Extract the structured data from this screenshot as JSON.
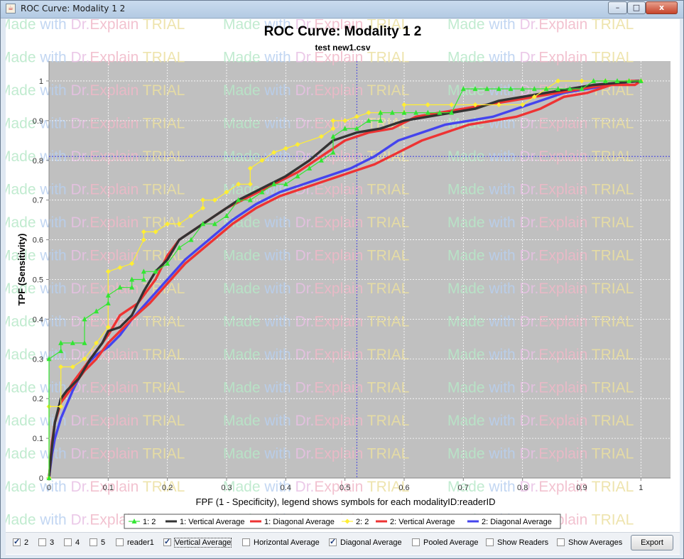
{
  "window": {
    "title": "ROC Curve: Modality 1 2",
    "app_icon": "java-coffee-icon",
    "minimize_glyph": "–",
    "maximize_glyph": "□",
    "close_glyph": "x"
  },
  "chart": {
    "title": "ROC Curve: Modality 1 2",
    "subtitle": "test new1.csv"
  },
  "chart_data": {
    "type": "line",
    "title": "ROC Curve: Modality 1 2",
    "subtitle": "test new1.csv",
    "xlabel": "FPF (1 - Specificity), legend shows symbols for each modalityID:readerID",
    "ylabel": "TPF (Sensitivity)",
    "xlim": [
      0,
      1.05
    ],
    "ylim": [
      0,
      1.05
    ],
    "x_ticks": [
      "0",
      "0.1",
      "0.2",
      "0.3",
      "0.4",
      "0.5",
      "0.6",
      "0.7",
      "0.8",
      "0.9",
      "1"
    ],
    "y_ticks": [
      "0",
      "0.1",
      "0.2",
      "0.3",
      "0.4",
      "0.5",
      "0.6",
      "0.7",
      "0.8",
      "0.9",
      "1"
    ],
    "grid": true,
    "background": "#c0c0c0",
    "crosshair": {
      "x": 0.52,
      "y": 0.81
    },
    "legend_position": "bottom",
    "series": [
      {
        "name": "1: 2",
        "color": "#33e633",
        "marker": "triangle",
        "x": [
          0,
          0,
          0.02,
          0.02,
          0.04,
          0.06,
          0.06,
          0.08,
          0.1,
          0.1,
          0.12,
          0.14,
          0.14,
          0.16,
          0.16,
          0.18,
          0.2,
          0.22,
          0.24,
          0.26,
          0.28,
          0.3,
          0.32,
          0.34,
          0.36,
          0.38,
          0.4,
          0.42,
          0.44,
          0.46,
          0.48,
          0.48,
          0.5,
          0.52,
          0.54,
          0.56,
          0.56,
          0.58,
          0.6,
          0.62,
          0.64,
          0.66,
          0.68,
          0.7,
          0.72,
          0.74,
          0.76,
          0.78,
          0.8,
          0.82,
          0.84,
          0.86,
          0.88,
          0.9,
          0.92,
          0.94,
          0.96,
          0.98,
          1
        ],
        "y": [
          0,
          0.3,
          0.32,
          0.34,
          0.34,
          0.34,
          0.4,
          0.42,
          0.44,
          0.46,
          0.48,
          0.48,
          0.5,
          0.5,
          0.52,
          0.52,
          0.54,
          0.58,
          0.6,
          0.64,
          0.64,
          0.66,
          0.7,
          0.7,
          0.72,
          0.74,
          0.74,
          0.76,
          0.78,
          0.8,
          0.82,
          0.86,
          0.88,
          0.88,
          0.9,
          0.9,
          0.92,
          0.92,
          0.92,
          0.92,
          0.92,
          0.92,
          0.92,
          0.98,
          0.98,
          0.98,
          0.98,
          0.98,
          0.98,
          0.98,
          0.98,
          0.98,
          0.98,
          0.98,
          1,
          1,
          1,
          1,
          1
        ]
      },
      {
        "name": "1: Vertical Average",
        "color": "#333333",
        "marker": "none",
        "x": [
          0,
          0.005,
          0.01,
          0.02,
          0.03,
          0.05,
          0.07,
          0.09,
          0.1,
          0.12,
          0.14,
          0.16,
          0.18,
          0.2,
          0.22,
          0.25,
          0.28,
          0.32,
          0.36,
          0.4,
          0.44,
          0.48,
          0.52,
          0.56,
          0.6,
          0.64,
          0.68,
          0.72,
          0.76,
          0.8,
          0.84,
          0.88,
          0.92,
          0.96,
          1
        ],
        "y": [
          0,
          0.08,
          0.14,
          0.2,
          0.22,
          0.25,
          0.3,
          0.34,
          0.37,
          0.38,
          0.41,
          0.47,
          0.52,
          0.55,
          0.6,
          0.63,
          0.66,
          0.7,
          0.73,
          0.76,
          0.8,
          0.85,
          0.87,
          0.88,
          0.9,
          0.91,
          0.92,
          0.93,
          0.95,
          0.96,
          0.97,
          0.98,
          0.99,
          0.995,
          1
        ]
      },
      {
        "name": "1: Diagonal Average",
        "color": "#ee3333",
        "marker": "none",
        "x": [
          0,
          0.005,
          0.01,
          0.02,
          0.04,
          0.06,
          0.08,
          0.1,
          0.12,
          0.15,
          0.18,
          0.2,
          0.22,
          0.26,
          0.3,
          0.34,
          0.38,
          0.42,
          0.46,
          0.5,
          0.54,
          0.58,
          0.62,
          0.66,
          0.7,
          0.74,
          0.78,
          0.82,
          0.86,
          0.9,
          0.94,
          0.98,
          1
        ],
        "y": [
          0,
          0.09,
          0.14,
          0.19,
          0.24,
          0.28,
          0.32,
          0.36,
          0.41,
          0.44,
          0.5,
          0.56,
          0.6,
          0.64,
          0.68,
          0.71,
          0.74,
          0.77,
          0.81,
          0.85,
          0.87,
          0.88,
          0.91,
          0.92,
          0.93,
          0.94,
          0.95,
          0.96,
          0.97,
          0.98,
          0.99,
          1,
          1
        ]
      },
      {
        "name": "2: 2",
        "color": "#ffee33",
        "marker": "diamond",
        "x": [
          0,
          0,
          0.02,
          0.02,
          0.04,
          0.06,
          0.08,
          0.1,
          0.1,
          0.12,
          0.14,
          0.16,
          0.16,
          0.18,
          0.2,
          0.22,
          0.24,
          0.26,
          0.26,
          0.28,
          0.3,
          0.32,
          0.34,
          0.34,
          0.36,
          0.38,
          0.4,
          0.42,
          0.46,
          0.48,
          0.48,
          0.5,
          0.52,
          0.54,
          0.56,
          0.6,
          0.6,
          0.64,
          0.68,
          0.72,
          0.76,
          0.8,
          0.82,
          0.84,
          0.84,
          0.86,
          0.9,
          0.94,
          0.98,
          1
        ],
        "y": [
          0,
          0.18,
          0.18,
          0.28,
          0.28,
          0.3,
          0.34,
          0.38,
          0.52,
          0.53,
          0.54,
          0.6,
          0.62,
          0.62,
          0.64,
          0.64,
          0.66,
          0.68,
          0.7,
          0.7,
          0.72,
          0.74,
          0.74,
          0.78,
          0.8,
          0.82,
          0.83,
          0.84,
          0.86,
          0.88,
          0.9,
          0.9,
          0.91,
          0.92,
          0.92,
          0.92,
          0.94,
          0.94,
          0.94,
          0.94,
          0.94,
          0.94,
          0.96,
          0.98,
          0.98,
          1,
          1,
          1,
          1,
          1
        ]
      },
      {
        "name": "2: Vertical Average",
        "color": "#ee3333",
        "marker": "none",
        "x": [
          0,
          0.005,
          0.01,
          0.02,
          0.04,
          0.06,
          0.08,
          0.1,
          0.12,
          0.14,
          0.17,
          0.2,
          0.23,
          0.27,
          0.31,
          0.35,
          0.39,
          0.43,
          0.47,
          0.51,
          0.55,
          0.59,
          0.63,
          0.67,
          0.71,
          0.75,
          0.79,
          0.83,
          0.87,
          0.91,
          0.95,
          0.99,
          1
        ],
        "y": [
          0,
          0.08,
          0.14,
          0.19,
          0.23,
          0.27,
          0.3,
          0.34,
          0.37,
          0.4,
          0.44,
          0.49,
          0.54,
          0.59,
          0.64,
          0.68,
          0.71,
          0.73,
          0.75,
          0.77,
          0.79,
          0.82,
          0.85,
          0.87,
          0.89,
          0.9,
          0.91,
          0.93,
          0.96,
          0.97,
          0.99,
          0.99,
          1
        ]
      },
      {
        "name": "2: Diagonal Average",
        "color": "#4444ee",
        "marker": "none",
        "x": [
          0,
          0.005,
          0.01,
          0.02,
          0.04,
          0.06,
          0.08,
          0.1,
          0.12,
          0.14,
          0.17,
          0.2,
          0.23,
          0.27,
          0.31,
          0.35,
          0.39,
          0.43,
          0.47,
          0.51,
          0.55,
          0.59,
          0.63,
          0.67,
          0.71,
          0.75,
          0.79,
          0.83,
          0.87,
          0.91,
          0.95,
          0.99,
          1
        ],
        "y": [
          0,
          0.06,
          0.1,
          0.15,
          0.22,
          0.28,
          0.31,
          0.33,
          0.36,
          0.4,
          0.45,
          0.5,
          0.55,
          0.6,
          0.65,
          0.69,
          0.72,
          0.74,
          0.76,
          0.78,
          0.81,
          0.85,
          0.87,
          0.89,
          0.9,
          0.91,
          0.93,
          0.95,
          0.97,
          0.98,
          0.99,
          1,
          1
        ]
      }
    ]
  },
  "watermark": {
    "text_parts": [
      "Made",
      " with",
      " Dr.",
      "Explain",
      " TRIAL"
    ],
    "colors": [
      "#b7e8c8",
      "#b8d0f0",
      "#e8c0e4",
      "#f0b8c8",
      "#ece0a0"
    ]
  },
  "controls": {
    "checkboxes": [
      {
        "label": "2",
        "checked": true
      },
      {
        "label": "3",
        "checked": false
      },
      {
        "label": "4",
        "checked": false
      },
      {
        "label": "5",
        "checked": false
      },
      {
        "label": "reader1",
        "checked": false
      },
      {
        "label": "Vertical Average",
        "checked": true
      },
      {
        "label": "Horizontal Average",
        "checked": false
      },
      {
        "label": "Diagonal Average",
        "checked": true
      },
      {
        "label": "Pooled Average",
        "checked": false
      },
      {
        "label": "Show Readers",
        "checked": false
      },
      {
        "label": "Show Averages",
        "checked": false
      }
    ],
    "export_label": "Export"
  }
}
